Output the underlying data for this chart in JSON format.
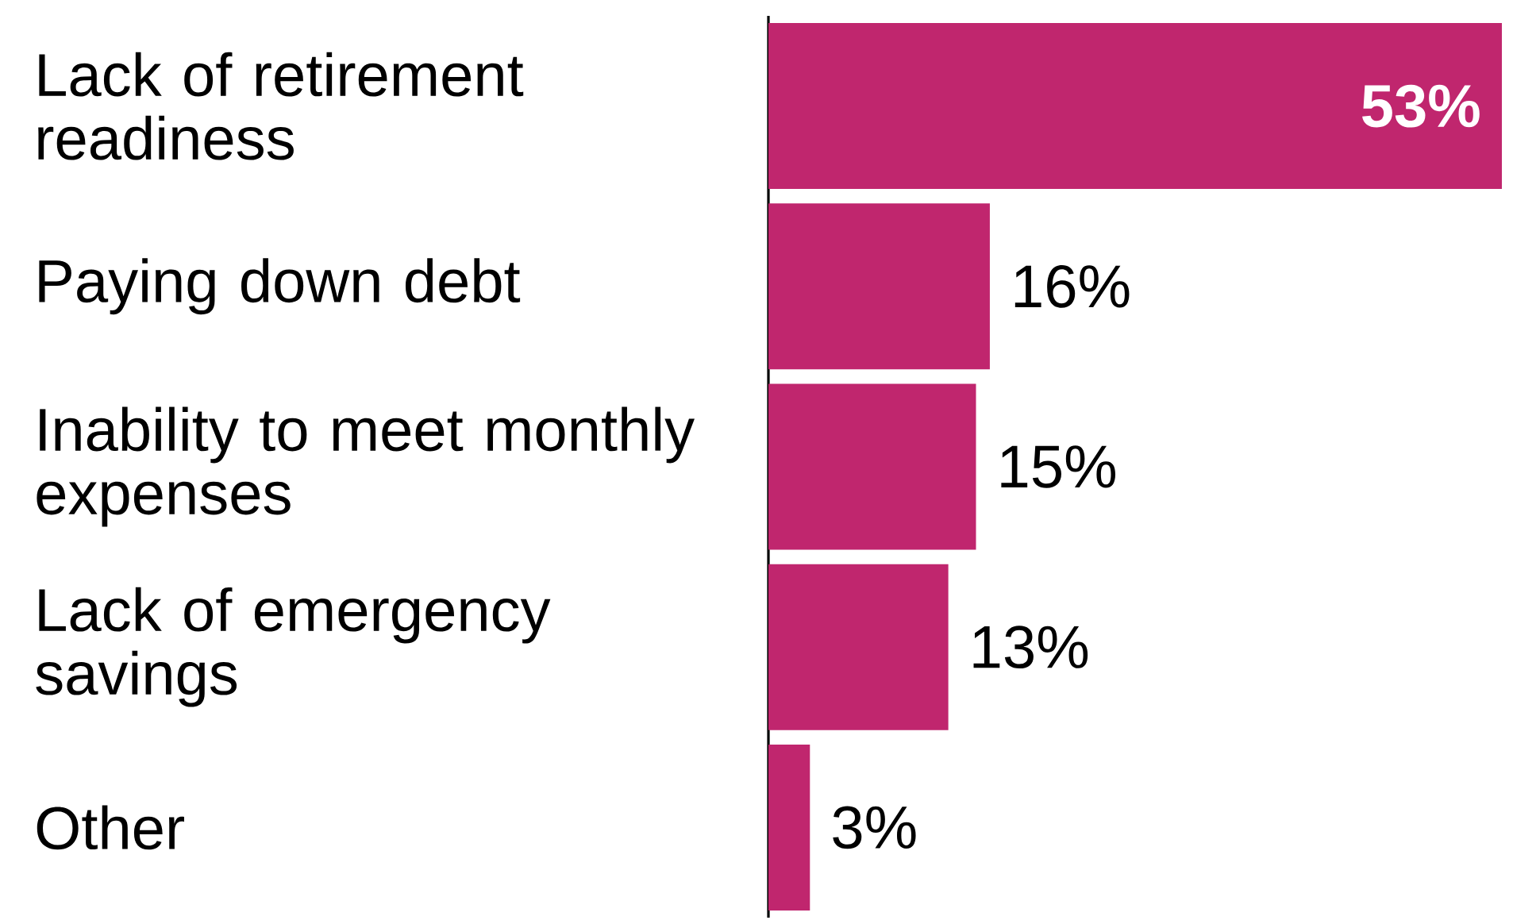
{
  "chart_data": {
    "type": "bar",
    "orientation": "horizontal",
    "categories": [
      "Lack of retirement readiness",
      "Paying down debt",
      "Inability to meet monthly expenses",
      "Lack of emergency savings",
      "Other"
    ],
    "values": [
      53,
      16,
      15,
      13,
      3
    ],
    "value_labels": [
      "53%",
      "16%",
      "15%",
      "13%",
      "3%"
    ],
    "color": "#c0266e"
  }
}
